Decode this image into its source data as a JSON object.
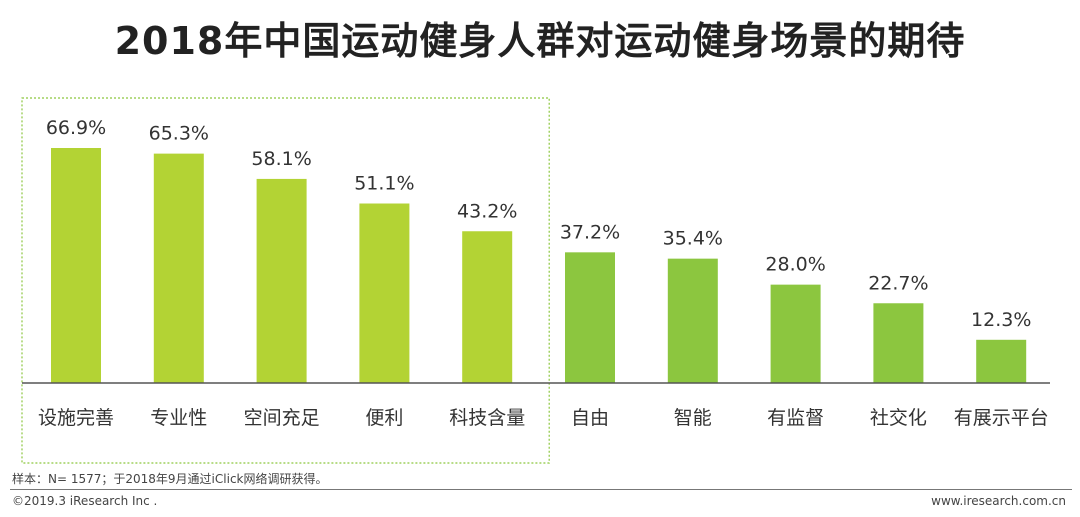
{
  "title": "2018年中国运动健身人群对运动健身场景的期待",
  "chart_data": {
    "type": "bar",
    "categories": [
      "设施完善",
      "专业性",
      "空间充足",
      "便利",
      "科技含量",
      "自由",
      "智能",
      "有监督",
      "社交化",
      "有展示平台"
    ],
    "values": [
      66.9,
      65.3,
      58.1,
      51.1,
      43.2,
      37.2,
      35.4,
      28.0,
      22.7,
      12.3
    ],
    "value_labels": [
      "66.9%",
      "65.3%",
      "58.1%",
      "51.1%",
      "43.2%",
      "37.2%",
      "35.4%",
      "28.0%",
      "22.7%",
      "12.3%"
    ],
    "ylim": [
      0,
      80
    ],
    "highlight_count": 5,
    "colors": {
      "highlight": "#b3d334",
      "normal": "#8cc63f",
      "highlight_box": "#8cc63f"
    }
  },
  "footnote": "样本：N= 1577；于2018年9月通过iClick网络调研获得。",
  "copyright": "©2019.3 iResearch Inc .",
  "website": "www.iresearch.com.cn"
}
